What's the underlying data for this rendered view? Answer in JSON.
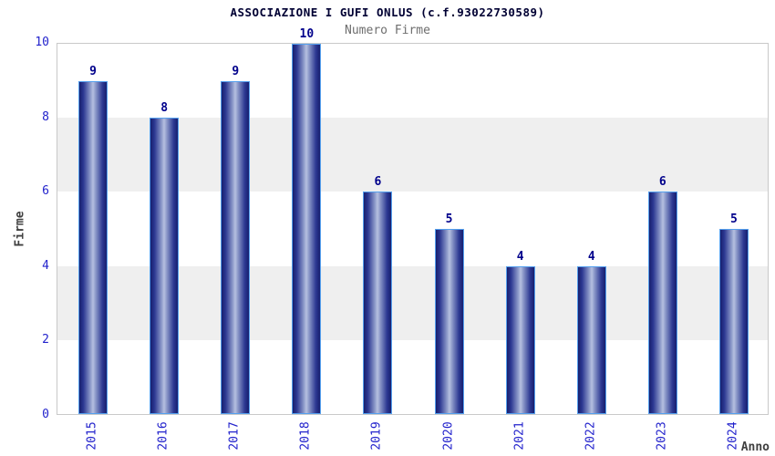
{
  "title": "ASSOCIAZIONE I GUFI ONLUS (c.f.93022730589)",
  "subtitle": "Numero Firme",
  "chart_data": {
    "type": "bar",
    "title": "ASSOCIAZIONE I GUFI ONLUS (c.f.93022730589)",
    "subtitle": "Numero Firme",
    "categories": [
      "2015",
      "2016",
      "2017",
      "2018",
      "2019",
      "2020",
      "2021",
      "2022",
      "2023",
      "2024"
    ],
    "values": [
      9,
      8,
      9,
      10,
      6,
      5,
      4,
      4,
      6,
      5
    ],
    "value_labels": [
      "9",
      "8",
      "9",
      "10",
      "6",
      "5",
      "4",
      "4",
      "6",
      "5"
    ],
    "xlabel": "Anno",
    "ylabel": "Firme",
    "ylim": [
      0,
      10
    ],
    "yticks": [
      0,
      2,
      4,
      6,
      8,
      10
    ],
    "grid_bands": [
      [
        6,
        8
      ],
      [
        2,
        4
      ]
    ],
    "legend": "none",
    "colors": {
      "title": "#000033",
      "subtitle": "#6e6e6e",
      "tick_label": "#2222cc",
      "value_label": "#00008b",
      "axis_title": "#404040",
      "band": "#efefef",
      "plot_border": "#c9c9c9",
      "bar_border": "#55a0ee",
      "bar_gradient_stops": [
        "#171f6e",
        "#2c3892",
        "#8a97c8",
        "#b6c0e0",
        "#8a97c8",
        "#2c3892",
        "#171f6e"
      ],
      "bar_gradient_positions": [
        0,
        15,
        40,
        50,
        60,
        85,
        100
      ]
    }
  }
}
